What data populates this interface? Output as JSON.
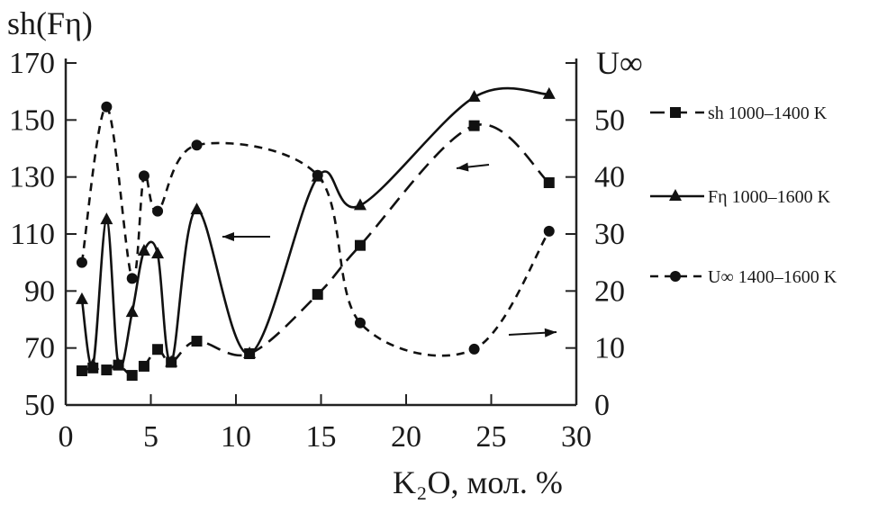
{
  "chart_data": {
    "type": "line",
    "xlabel": "K₂O, мол. %",
    "ylabel_left": "sh(Fη)",
    "ylabel_right": "U∞",
    "xlim": [
      0,
      30
    ],
    "ylim_left": [
      50,
      170
    ],
    "ylim_right": [
      0,
      60
    ],
    "x_ticks": [
      "0",
      "5",
      "10",
      "15",
      "20",
      "25",
      "30"
    ],
    "y_ticks_left": [
      "50",
      "70",
      "90",
      "110",
      "130",
      "150",
      "170"
    ],
    "y_ticks_right": [
      "0",
      "10",
      "20",
      "30",
      "40",
      "50"
    ],
    "grid": false,
    "legend_position": "right",
    "series": [
      {
        "name": "sh 1000–1400 K",
        "axis": "left",
        "marker": "square",
        "line": "long-dash",
        "x": [
          0.95,
          1.6,
          2.4,
          3.1,
          3.9,
          4.6,
          5.4,
          6.2,
          7.7,
          10.8,
          14.8,
          17.3,
          24.0,
          28.4
        ],
        "y": [
          62,
          63,
          62.3,
          64,
          60.4,
          63.6,
          69.5,
          65,
          72.4,
          68,
          88.8,
          106,
          148,
          128
        ]
      },
      {
        "name": "Fη 1000–1600 K",
        "axis": "left",
        "marker": "triangle",
        "line": "solid",
        "x": [
          0.95,
          1.6,
          2.4,
          3.1,
          3.9,
          4.6,
          5.4,
          6.2,
          7.7,
          10.8,
          14.8,
          17.3,
          24.0,
          28.4
        ],
        "y": [
          87,
          64,
          115,
          64,
          82.5,
          104,
          103,
          65,
          118.5,
          68,
          130,
          120,
          158,
          159
        ]
      },
      {
        "name": "U∞ 1400–1600 K",
        "axis": "right",
        "marker": "circle",
        "line": "short-dash",
        "x": [
          0.95,
          2.4,
          3.9,
          4.6,
          5.4,
          7.7,
          14.8,
          17.3,
          24.0,
          28.4
        ],
        "y": [
          25,
          52.3,
          22.2,
          40.2,
          34,
          45.6,
          40.3,
          14.4,
          9.8,
          30.5
        ]
      }
    ]
  }
}
